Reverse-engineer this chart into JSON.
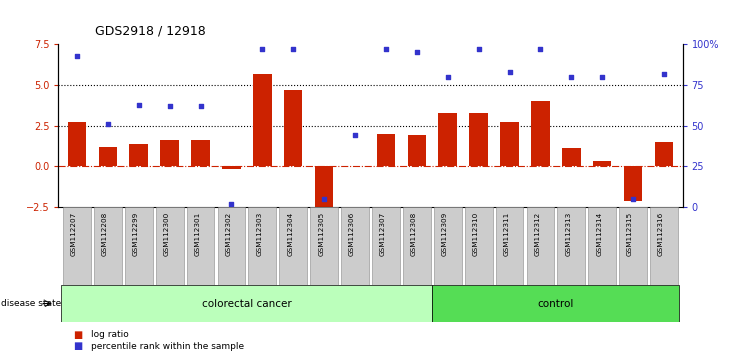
{
  "title": "GDS2918 / 12918",
  "samples": [
    "GSM112207",
    "GSM112208",
    "GSM112299",
    "GSM112300",
    "GSM112301",
    "GSM112302",
    "GSM112303",
    "GSM112304",
    "GSM112305",
    "GSM112306",
    "GSM112307",
    "GSM112308",
    "GSM112309",
    "GSM112310",
    "GSM112311",
    "GSM112312",
    "GSM112313",
    "GSM112314",
    "GSM112315",
    "GSM112316"
  ],
  "log_ratio": [
    2.7,
    1.2,
    1.4,
    1.6,
    1.6,
    -0.15,
    5.7,
    4.7,
    -2.6,
    0.05,
    2.0,
    1.9,
    3.3,
    3.3,
    2.7,
    4.0,
    1.1,
    0.35,
    -2.1,
    1.5
  ],
  "percentile": [
    93,
    51,
    63,
    62,
    62,
    2,
    97,
    97,
    5,
    44,
    97,
    95,
    80,
    97,
    83,
    97,
    80,
    80,
    5,
    82
  ],
  "colorectal_cancer_count": 12,
  "bar_color": "#cc2200",
  "dot_color": "#3333cc",
  "ylim_left": [
    -2.5,
    7.5
  ],
  "ylim_right": [
    0,
    100
  ],
  "dotted_lines": [
    2.5,
    5.0
  ],
  "bg_color": "#ffffff",
  "green_light": "#bbffbb",
  "green_dark": "#55dd55",
  "legend_bar_label": "log ratio",
  "legend_dot_label": "percentile rank within the sample",
  "disease_label": "disease state",
  "cancer_label": "colorectal cancer",
  "control_label": "control"
}
